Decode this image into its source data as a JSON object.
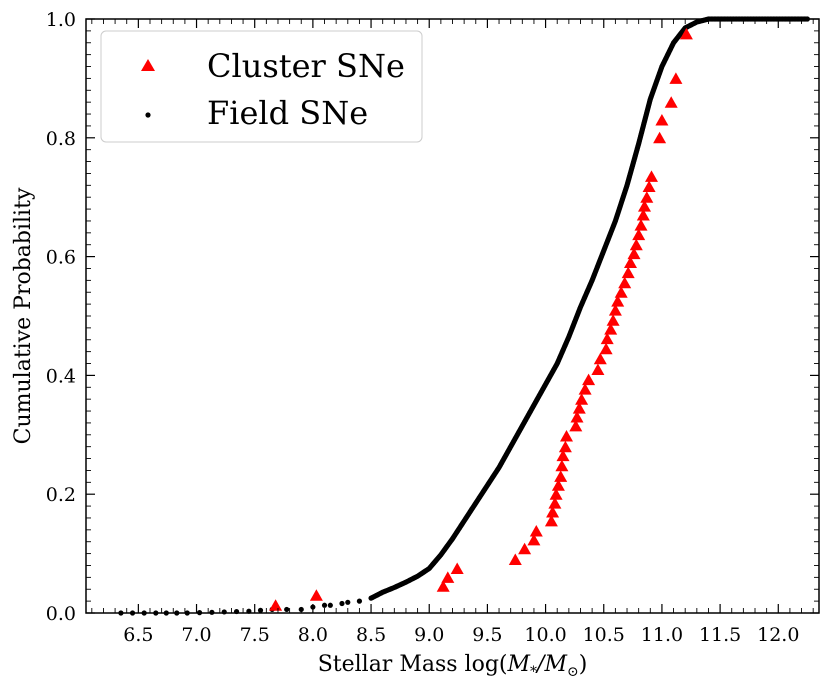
{
  "chart_data": {
    "type": "scatter",
    "title": "",
    "xlabel_prefix": "Stellar Mass log(",
    "xlabel_math": "M",
    "xlabel_sub1": "*",
    "xlabel_slash": "/",
    "xlabel_sub2": "⊙",
    "xlabel_suffix": ")",
    "ylabel": "Cumulative Probability",
    "xlim": [
      6.05,
      12.35
    ],
    "ylim": [
      0.0,
      1.0
    ],
    "x_ticks": [
      "6.5",
      "7.0",
      "7.5",
      "8.0",
      "8.5",
      "9.0",
      "9.5",
      "10.0",
      "10.5",
      "11.0",
      "11.5",
      "12.0"
    ],
    "y_ticks": [
      "0.0",
      "0.2",
      "0.4",
      "0.6",
      "0.8",
      "1.0"
    ],
    "legend_position": "top-left",
    "series": [
      {
        "name": "Cluster SNe",
        "marker": "triangle",
        "color": "#ff0000",
        "x": [
          7.68,
          8.03,
          9.12,
          9.16,
          9.24,
          9.74,
          9.82,
          9.9,
          9.92,
          10.05,
          10.06,
          10.08,
          10.09,
          10.11,
          10.13,
          10.14,
          10.15,
          10.17,
          10.18,
          10.26,
          10.27,
          10.29,
          10.31,
          10.34,
          10.37,
          10.45,
          10.47,
          10.52,
          10.53,
          10.56,
          10.58,
          10.6,
          10.62,
          10.65,
          10.68,
          10.71,
          10.73,
          10.76,
          10.78,
          10.8,
          10.82,
          10.84,
          10.85,
          10.87,
          10.89,
          10.91,
          10.98,
          11.0,
          11.08,
          11.12,
          11.21
        ],
        "y": [
          0.013,
          0.03,
          0.045,
          0.06,
          0.075,
          0.09,
          0.108,
          0.123,
          0.138,
          0.155,
          0.17,
          0.185,
          0.2,
          0.215,
          0.23,
          0.248,
          0.265,
          0.28,
          0.298,
          0.315,
          0.33,
          0.345,
          0.36,
          0.377,
          0.393,
          0.41,
          0.428,
          0.445,
          0.462,
          0.478,
          0.493,
          0.51,
          0.525,
          0.54,
          0.556,
          0.573,
          0.59,
          0.605,
          0.62,
          0.637,
          0.653,
          0.67,
          0.685,
          0.7,
          0.718,
          0.735,
          0.8,
          0.83,
          0.86,
          0.9,
          0.975
        ]
      },
      {
        "name": "Field SNe",
        "marker": "dot",
        "color": "#000000",
        "points": [
          [
            6.35,
            0.0
          ],
          [
            6.65,
            0.0
          ],
          [
            6.92,
            0.0
          ],
          [
            7.45,
            0.003
          ],
          [
            7.65,
            0.006
          ],
          [
            7.9,
            0.006
          ],
          [
            8.0,
            0.01
          ],
          [
            8.1,
            0.013
          ],
          [
            8.15,
            0.013
          ],
          [
            8.25,
            0.016
          ],
          [
            8.3,
            0.018
          ],
          [
            8.4,
            0.02
          ],
          [
            8.5,
            0.025
          ],
          [
            8.6,
            0.035
          ],
          [
            8.7,
            0.043
          ],
          [
            8.8,
            0.052
          ],
          [
            8.9,
            0.062
          ],
          [
            9.0,
            0.075
          ],
          [
            9.1,
            0.098
          ],
          [
            9.2,
            0.125
          ],
          [
            9.3,
            0.155
          ],
          [
            9.4,
            0.185
          ],
          [
            9.5,
            0.215
          ],
          [
            9.6,
            0.245
          ],
          [
            9.7,
            0.28
          ],
          [
            9.8,
            0.315
          ],
          [
            9.9,
            0.35
          ],
          [
            10.0,
            0.385
          ],
          [
            10.1,
            0.42
          ],
          [
            10.2,
            0.465
          ],
          [
            10.3,
            0.515
          ],
          [
            10.4,
            0.56
          ],
          [
            10.5,
            0.61
          ],
          [
            10.6,
            0.66
          ],
          [
            10.7,
            0.72
          ],
          [
            10.8,
            0.79
          ],
          [
            10.9,
            0.865
          ],
          [
            11.0,
            0.92
          ],
          [
            11.1,
            0.96
          ],
          [
            11.2,
            0.985
          ],
          [
            11.3,
            0.995
          ],
          [
            11.4,
            1.0
          ],
          [
            11.55,
            1.0
          ],
          [
            11.8,
            1.0
          ],
          [
            12.05,
            1.0
          ],
          [
            12.25,
            1.0
          ]
        ]
      }
    ]
  }
}
